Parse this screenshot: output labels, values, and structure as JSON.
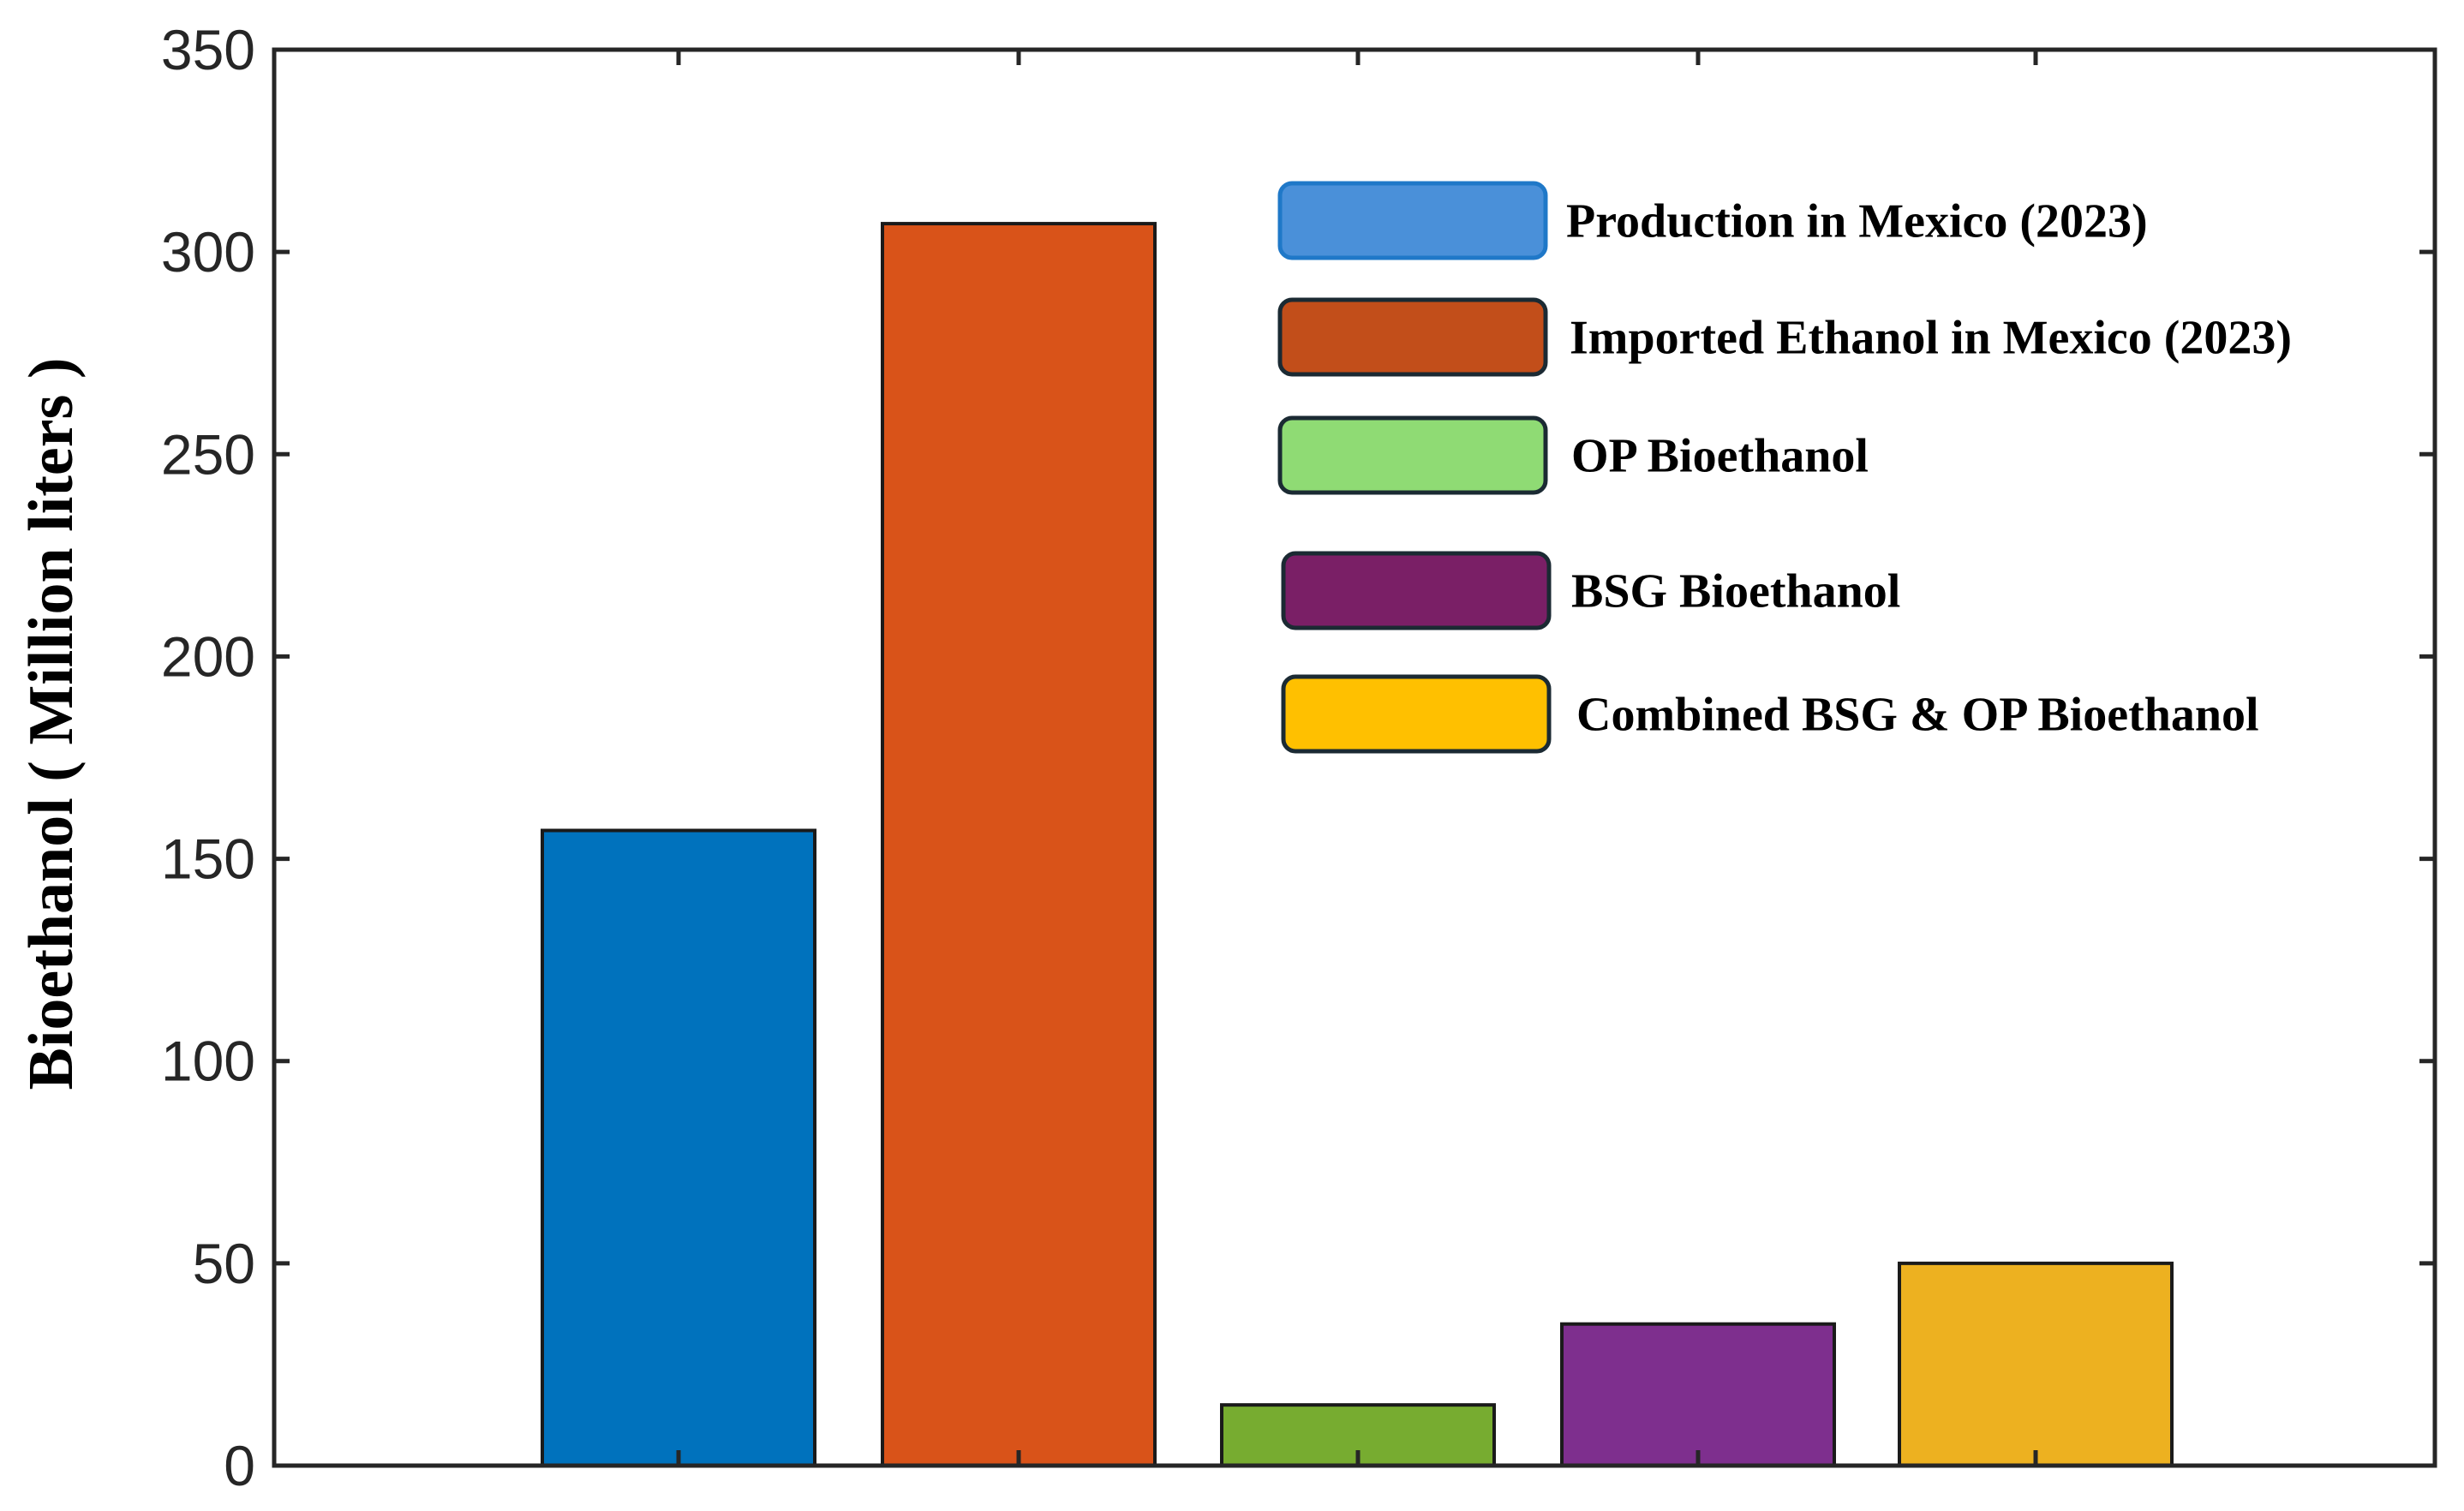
{
  "chart_data": {
    "type": "bar",
    "title": "",
    "xlabel": "",
    "ylabel": "Bioethanol ( Million liters )",
    "ylim": [
      0,
      350
    ],
    "yticks": [
      0,
      50,
      100,
      150,
      200,
      250,
      300,
      350
    ],
    "grid": false,
    "legend_position": "top-right",
    "categories": [
      "Production in Mexico (2023)",
      "Imported Ethanol in Mexico (2023)",
      "OP Bioethanol",
      "BSG Bioethanol",
      "Combined BSG & OP Bioethanol"
    ],
    "values": [
      157,
      307,
      15,
      35,
      50
    ],
    "bar_colors": [
      "#0072BD",
      "#D95319",
      "#77AC30",
      "#7E2F8E",
      "#EDB120"
    ],
    "legend": [
      {
        "label": "Production in Mexico (2023)",
        "color": "#4A90D9"
      },
      {
        "label": "Imported Ethanol in Mexico (2023)",
        "color": "#C24E1A"
      },
      {
        "label": "OP Bioethanol",
        "color": "#8FDB74"
      },
      {
        "label": "BSG Bioethanol",
        "color": "#7A1F66"
      },
      {
        "label": "Combined BSG & OP Bioethanol",
        "color": "#FFC000"
      }
    ]
  }
}
